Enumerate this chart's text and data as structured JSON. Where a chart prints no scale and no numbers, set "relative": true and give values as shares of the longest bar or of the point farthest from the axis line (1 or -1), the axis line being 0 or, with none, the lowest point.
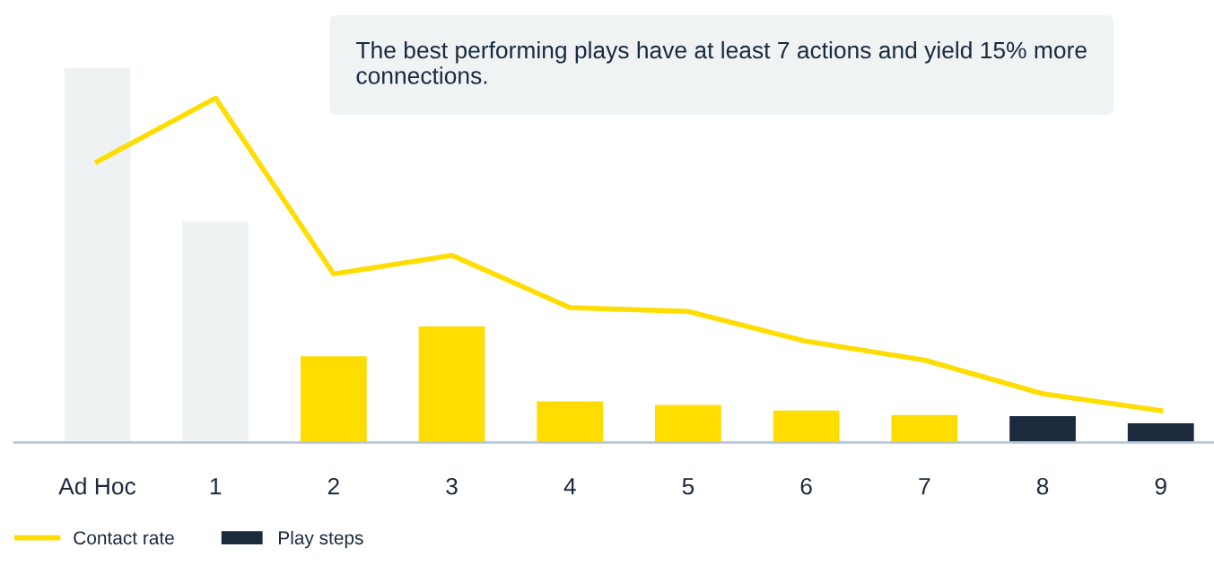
{
  "chart_data": {
    "type": "bar",
    "relative": true,
    "categories": [
      "Ad Hoc",
      "1",
      "2",
      "3",
      "4",
      "5",
      "6",
      "7",
      "8",
      "9"
    ],
    "series": [
      {
        "name": "Contact rate",
        "type": "line",
        "color": "#ffdd00",
        "values": [
          0.75,
          0.92,
          0.45,
          0.5,
          0.36,
          0.35,
          0.27,
          0.22,
          0.13,
          0.085
        ]
      },
      {
        "name": "Play steps",
        "color": "#1b2a3d",
        "colors": [
          "#eff2f3",
          "#eff2f3",
          "#ffdd00",
          "#ffdd00",
          "#ffdd00",
          "#ffdd00",
          "#ffdd00",
          "#ffdd00",
          "#1b2a3d",
          "#1b2a3d"
        ],
        "values": [
          1,
          0.59,
          0.23,
          0.31,
          0.11,
          0.1,
          0.085,
          0.073,
          0.07,
          0.051
        ]
      }
    ],
    "annotations": [
      "The best performing plays have at least 7 actions and yield 15% more connections."
    ],
    "legend": "bottom left",
    "grid": false,
    "marker": "none"
  }
}
